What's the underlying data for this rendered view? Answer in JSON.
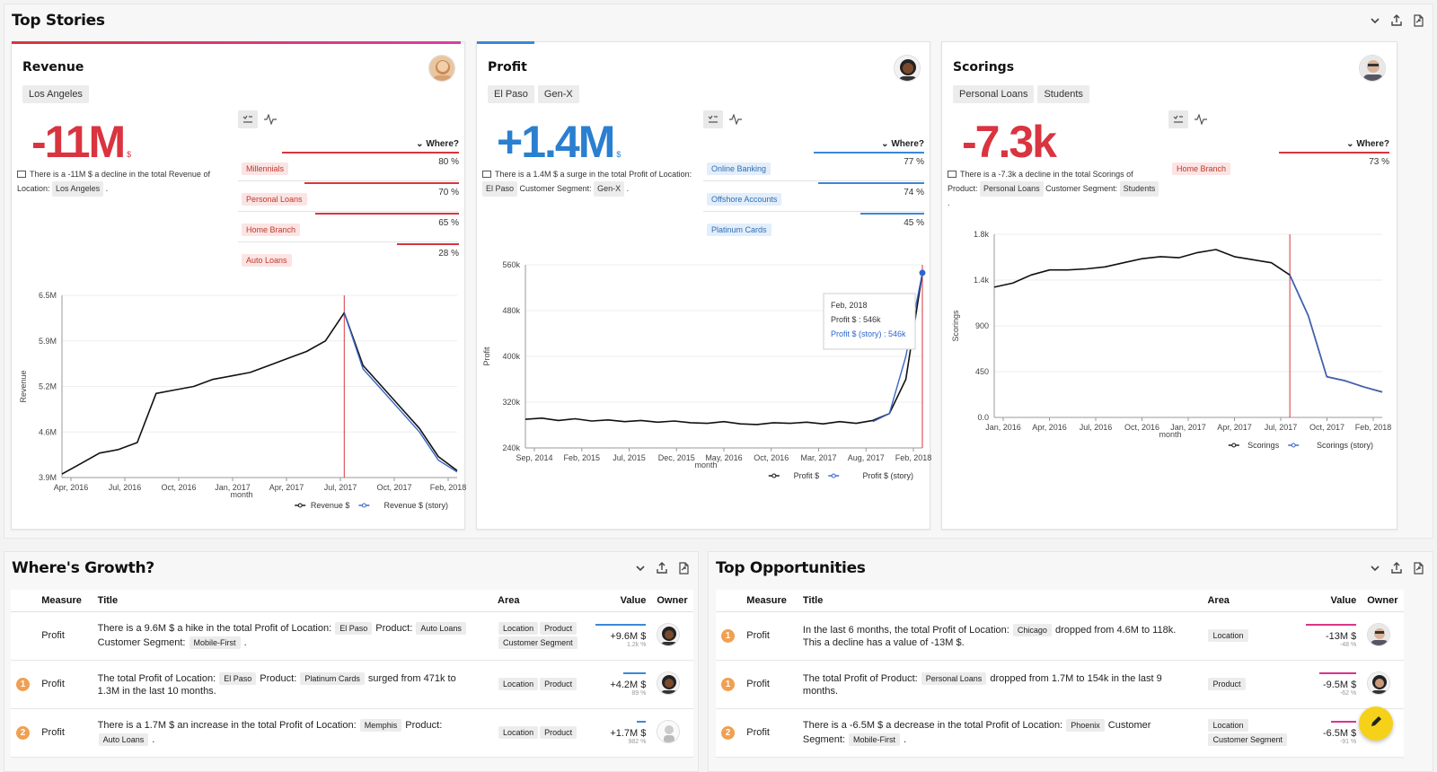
{
  "top_stories": {
    "title": "Top Stories",
    "cards": [
      {
        "title": "Revenue",
        "chips": [
          "Los Angeles"
        ],
        "value": "-11M",
        "unit": "$",
        "value_color": "#d9343f",
        "accent_color": "#d9343f",
        "desc_prefix": "There is a -11M $ a decline in the total Revenue of Location:",
        "desc_chips": [
          "Los Angeles"
        ],
        "where_label": "Where?",
        "where_rows": [
          {
            "label": "Millennials",
            "pct": "80 %",
            "fraction": 0.8
          },
          {
            "label": "Personal Loans",
            "pct": "70 %",
            "fraction": 0.7
          },
          {
            "label": "Home Branch",
            "pct": "65 %",
            "fraction": 0.65
          },
          {
            "label": "Auto Loans",
            "pct": "28 %",
            "fraction": 0.28
          }
        ],
        "where_tag_bg": "#fbe4e4",
        "where_tag_color": "#c0392b",
        "where_bar_color": "#d9343f"
      },
      {
        "title": "Profit",
        "chips": [
          "El Paso",
          "Gen-X"
        ],
        "value": "+1.4M",
        "unit": "$",
        "value_color": "#2a7fd0",
        "accent_color": "#3a88d8",
        "desc_prefix": "There is a 1.4M $ a surge in the total Profit of Location:",
        "desc_chips": [
          "El Paso"
        ],
        "desc_middle": "Customer Segment:",
        "desc_chips2": [
          "Gen-X"
        ],
        "where_label": "Where?",
        "where_rows": [
          {
            "label": "Online Banking",
            "pct": "77 %",
            "fraction": 0.77
          },
          {
            "label": "Offshore Accounts",
            "pct": "74 %",
            "fraction": 0.74
          },
          {
            "label": "Platinum Cards",
            "pct": "45 %",
            "fraction": 0.45
          }
        ],
        "where_tag_bg": "#e3eefa",
        "where_tag_color": "#2f6fb5",
        "where_bar_color": "#3a88d8"
      },
      {
        "title": "Scorings",
        "chips": [
          "Personal Loans",
          "Students"
        ],
        "value": "-7.3k",
        "unit": "",
        "value_color": "#d9343f",
        "accent_color": "#d9343f",
        "desc_prefix": "There is a -7.3k a decline in the total Scorings of Product:",
        "desc_chips": [
          "Personal Loans"
        ],
        "desc_middle": "Customer Segment:",
        "desc_chips2": [
          "Students"
        ],
        "where_label": "Where?",
        "where_rows": [
          {
            "label": "Home Branch",
            "pct": "73 %",
            "fraction": 0.73
          }
        ],
        "where_tag_bg": "#fbe4e4",
        "where_tag_color": "#c0392b",
        "where_bar_color": "#d9343f"
      }
    ]
  },
  "chart_data": [
    {
      "type": "line",
      "ylabel": "Revenue",
      "xlabel": "month",
      "yticks": [
        "3.9M",
        "4.6M",
        "5.2M",
        "5.9M",
        "6.5M"
      ],
      "xticks": [
        "Apr, 2016",
        "Jul, 2016",
        "Oct, 2016",
        "Jan, 2017",
        "Apr, 2017",
        "Jul, 2017",
        "Oct, 2017",
        "Feb, 2018"
      ],
      "ylim": [
        3.9,
        6.5
      ],
      "marker_index": 15,
      "series": [
        {
          "name": "Revenue $",
          "color": "#111111",
          "values": [
            3.95,
            4.1,
            4.25,
            4.3,
            4.4,
            5.1,
            5.15,
            5.2,
            5.3,
            5.35,
            5.4,
            5.5,
            5.6,
            5.7,
            5.85,
            6.25,
            5.5,
            5.2,
            4.9,
            4.6,
            4.2,
            4.0
          ]
        },
        {
          "name": "Revenue $ (story)",
          "color": "#3a66c4",
          "values": [
            null,
            null,
            null,
            null,
            null,
            null,
            null,
            null,
            null,
            null,
            null,
            null,
            null,
            null,
            null,
            6.25,
            5.45,
            5.15,
            4.85,
            4.55,
            4.15,
            3.98
          ]
        }
      ]
    },
    {
      "type": "line",
      "ylabel": "Profit",
      "xlabel": "month",
      "yticks": [
        "240k",
        "320k",
        "400k",
        "480k",
        "560k"
      ],
      "xticks": [
        "Sep, 2014",
        "Feb, 2015",
        "Jul, 2015",
        "Dec, 2015",
        "May, 2016",
        "Oct, 2016",
        "Mar, 2017",
        "Aug, 2017",
        "Feb, 2018"
      ],
      "ylim": [
        240,
        560
      ],
      "marker_index": 24,
      "tooltip": {
        "date": "Feb, 2018",
        "line1": "Profit $ : 546k",
        "line2": "Profit $ (story) : 546k"
      },
      "series": [
        {
          "name": "Profit $",
          "color": "#111111",
          "values": [
            290,
            292,
            288,
            291,
            287,
            289,
            286,
            288,
            285,
            287,
            284,
            283,
            286,
            282,
            281,
            284,
            283,
            285,
            282,
            286,
            283,
            288,
            300,
            360,
            546
          ]
        },
        {
          "name": "Profit $ (story)",
          "color": "#3a66c4",
          "values": [
            null,
            null,
            null,
            null,
            null,
            null,
            null,
            null,
            null,
            null,
            null,
            null,
            null,
            null,
            null,
            null,
            null,
            null,
            null,
            null,
            null,
            286,
            300,
            400,
            546
          ]
        }
      ]
    },
    {
      "type": "line",
      "ylabel": "Scorings",
      "xlabel": "month",
      "yticks": [
        "0.0",
        "450",
        "900",
        "1.4k",
        "1.8k"
      ],
      "xticks": [
        "Jan, 2016",
        "Apr, 2016",
        "Jul, 2016",
        "Oct, 2016",
        "Jan, 2017",
        "Apr, 2017",
        "Jul, 2017",
        "Oct, 2017",
        "Feb, 2018"
      ],
      "ylim": [
        0,
        1800
      ],
      "marker_index": 16,
      "series": [
        {
          "name": "Scorings",
          "color": "#111111",
          "values": [
            1280,
            1320,
            1400,
            1450,
            1450,
            1460,
            1480,
            1520,
            1560,
            1580,
            1570,
            1620,
            1650,
            1580,
            1550,
            1520,
            1400,
            1000,
            400,
            360,
            300,
            250
          ]
        },
        {
          "name": "Scorings (story)",
          "color": "#3a66c4",
          "values": [
            null,
            null,
            null,
            null,
            null,
            null,
            null,
            null,
            null,
            null,
            null,
            null,
            null,
            null,
            null,
            null,
            1400,
            1000,
            400,
            360,
            300,
            250
          ]
        }
      ]
    }
  ],
  "growth": {
    "title": "Where's Growth?",
    "headers": {
      "measure": "Measure",
      "title": "Title",
      "area": "Area",
      "value": "Value",
      "owner": "Owner"
    },
    "rows": [
      {
        "rank": "",
        "measure": "Profit",
        "title": "There is a 9.6M $ a hike in the total Profit of Location: El Paso Product: Auto Loans Customer Segment: Mobile-First .",
        "areas": [
          "Location",
          "Product",
          "Customer Segment"
        ],
        "value": "+9.6M $",
        "sub": "1.2k %",
        "bar_fraction": 1.0
      },
      {
        "rank": "1",
        "measure": "Profit",
        "title": "The total Profit of Location: El Paso Product: Platinum Cards surged from 471k to 1.3M in the last 10 months.",
        "areas": [
          "Location",
          "Product"
        ],
        "value": "+4.2M $",
        "sub": "89 %",
        "bar_fraction": 0.45
      },
      {
        "rank": "2",
        "measure": "Profit",
        "title": "There is a 1.7M $ an increase in the total Profit of Location: Memphis Product: Auto Loans .",
        "areas": [
          "Location",
          "Product"
        ],
        "value": "+1.7M $",
        "sub": "982 %",
        "bar_fraction": 0.18
      }
    ],
    "bar_color": "#3a88d8"
  },
  "opportunities": {
    "title": "Top Opportunities",
    "headers": {
      "measure": "Measure",
      "title": "Title",
      "area": "Area",
      "value": "Value",
      "owner": "Owner"
    },
    "rows": [
      {
        "rank": "1",
        "measure": "Profit",
        "title": "In the last 6 months, the total Profit of Location: Chicago dropped from 4.6M to 118k. This a decline has a value of -13M $.",
        "areas": [
          "Location"
        ],
        "value": "-13M $",
        "sub": "-48 %",
        "bar_fraction": 1.0
      },
      {
        "rank": "1",
        "measure": "Profit",
        "title": "The total Profit of Product: Personal Loans dropped from 1.7M to 154k in the last 9 months.",
        "areas": [
          "Product"
        ],
        "value": "-9.5M $",
        "sub": "-62 %",
        "bar_fraction": 0.73
      },
      {
        "rank": "2",
        "measure": "Profit",
        "title": "There is a -6.5M $ a decrease in the total Profit of Location: Phoenix Customer Segment: Mobile-First .",
        "areas": [
          "Location",
          "Customer Segment"
        ],
        "value": "-6.5M $",
        "sub": "-91 %",
        "bar_fraction": 0.5
      }
    ],
    "bar_color": "#d9348a"
  },
  "icons": {
    "collapse": "chevron-down-icon",
    "export": "upload-icon",
    "share": "share-file-icon",
    "edit": "pencil-icon"
  }
}
